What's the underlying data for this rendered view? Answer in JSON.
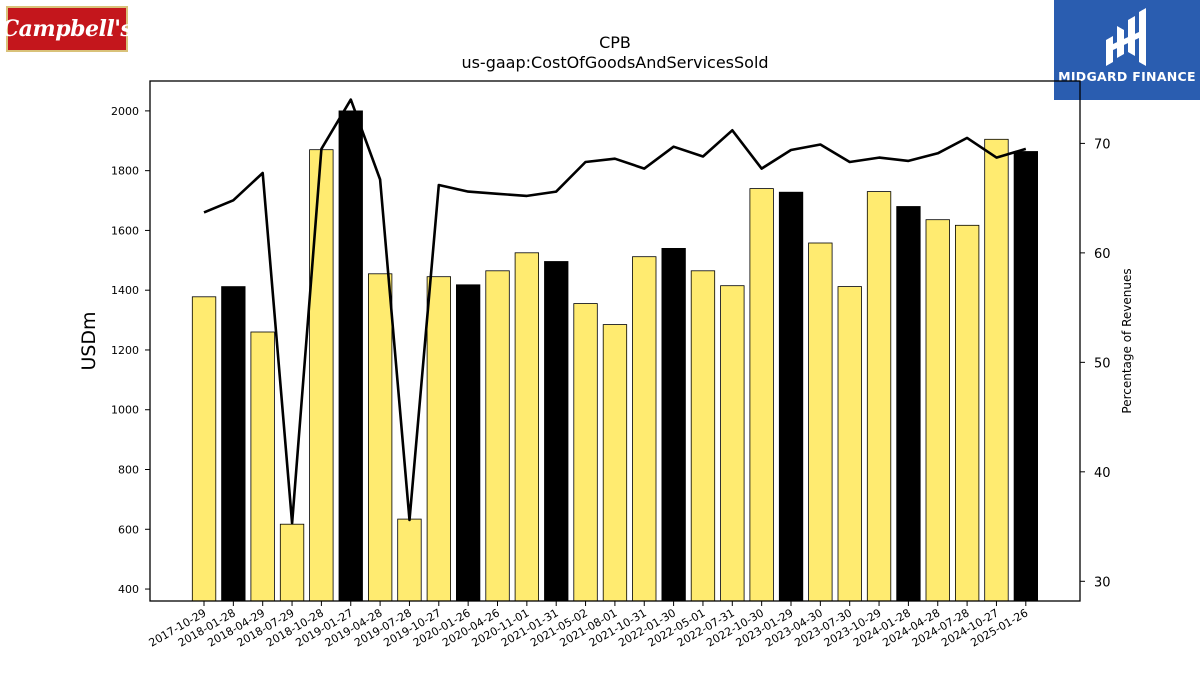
{
  "brand": {
    "left_logo_text": "Campbell's",
    "right_logo_text": "MIDGARD FINANCE"
  },
  "colors": {
    "highlight_bar": "#000000",
    "normal_bar": "#ffeb70",
    "line": "#000000",
    "brand_blue": "#2a5db0",
    "brand_red": "#c4161c"
  },
  "chart_data": {
    "type": "bar",
    "title": "CPB",
    "subtitle": "us-gaap:CostOfGoodsAndServicesSold",
    "ylabel": "USDm",
    "y2label": "Percentage of Revenues",
    "ylim": [
      360,
      2100
    ],
    "y2lim": [
      28.2,
      75.7
    ],
    "yticks": [
      400,
      600,
      800,
      1000,
      1200,
      1400,
      1600,
      1800,
      2000
    ],
    "y2ticks": [
      30,
      40,
      50,
      60,
      70
    ],
    "grid": false,
    "categories": [
      "2017-10-29",
      "2018-01-28",
      "2018-04-29",
      "2018-07-29",
      "2018-10-28",
      "2019-01-27",
      "2019-04-28",
      "2019-07-28",
      "2019-10-27",
      "2020-01-26",
      "2020-04-26",
      "2020-11-01",
      "2021-01-31",
      "2021-05-02",
      "2021-08-01",
      "2021-10-31",
      "2022-01-30",
      "2022-05-01",
      "2022-07-31",
      "2022-10-30",
      "2023-01-29",
      "2023-04-30",
      "2023-07-30",
      "2023-10-29",
      "2024-01-28",
      "2024-04-28",
      "2024-07-28",
      "2024-10-27",
      "2025-01-26"
    ],
    "series": [
      {
        "kind": "bar",
        "values": [
          1378,
          1412,
          1260,
          617,
          1870,
          2000,
          1455,
          634,
          1445,
          1418,
          1465,
          1525,
          1496,
          1355,
          1285,
          1512,
          1540,
          1465,
          1415,
          1740,
          1728,
          1558,
          1412,
          1730,
          1680,
          1636,
          1617,
          1905,
          1864
        ],
        "highlight": [
          false,
          true,
          false,
          false,
          false,
          true,
          false,
          false,
          false,
          true,
          false,
          false,
          true,
          false,
          false,
          false,
          true,
          false,
          false,
          false,
          true,
          false,
          false,
          false,
          true,
          false,
          false,
          false,
          true
        ]
      },
      {
        "kind": "line",
        "axis": "right",
        "values": [
          63.7,
          64.8,
          67.3,
          35.3,
          69.5,
          74.0,
          66.7,
          35.6,
          66.2,
          65.6,
          65.4,
          65.2,
          65.6,
          68.3,
          68.6,
          67.7,
          69.7,
          68.8,
          71.2,
          67.7,
          69.4,
          69.9,
          68.3,
          68.7,
          68.4,
          69.1,
          70.5,
          68.7,
          69.5
        ]
      }
    ]
  }
}
